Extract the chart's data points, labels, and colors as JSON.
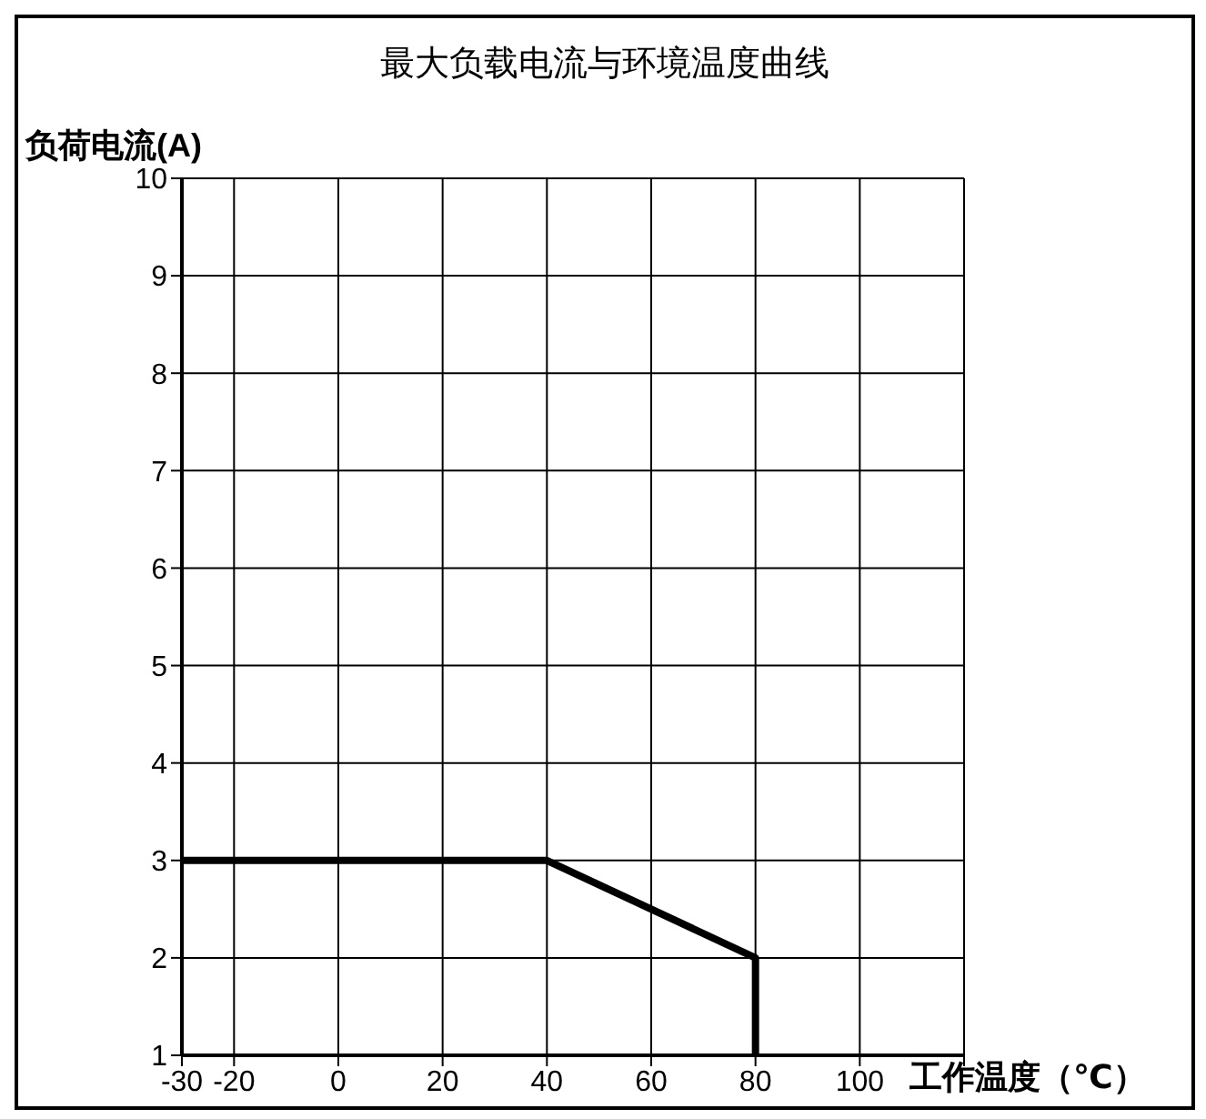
{
  "chart_data": {
    "type": "line",
    "title": "最大负载电流与环境温度曲线",
    "xlabel": "工作温度（℃）",
    "ylabel": "负荷电流(A)",
    "x": [
      -30,
      40,
      80,
      80
    ],
    "series": [
      {
        "color": "#000000",
        "values": [
          3,
          3,
          2,
          1
        ]
      }
    ],
    "xlim": [
      -30,
      120
    ],
    "xticks": [
      -30,
      -20,
      0,
      20,
      40,
      60,
      80,
      100,
      {
        "value": 120,
        "label": null
      }
    ],
    "ylim": [
      1,
      10
    ],
    "yticks": [
      1,
      2,
      3,
      4,
      5,
      6,
      7,
      8,
      9,
      10
    ],
    "grid": true,
    "marker": "none",
    "line_style": "solid"
  }
}
